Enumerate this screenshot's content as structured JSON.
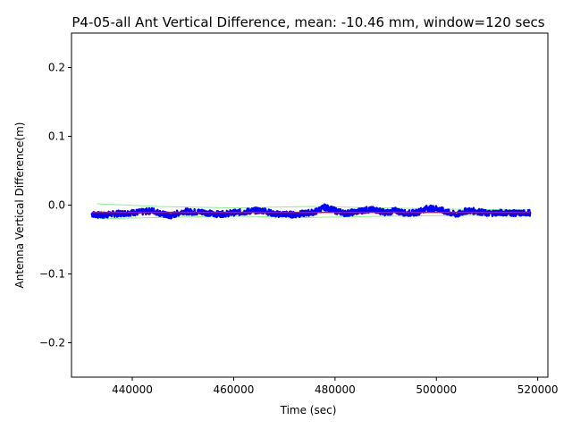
{
  "chart_data": {
    "type": "line",
    "title": "P4-05-all Ant Vertical Difference, mean: -10.46 mm, window=120 secs",
    "xlabel": "Time (sec)",
    "ylabel": "Antenna Vertical Difference(m)",
    "xlim": [
      428000,
      522000
    ],
    "ylim": [
      -0.25,
      0.25
    ],
    "x_ticks": [
      440000,
      460000,
      480000,
      500000,
      520000
    ],
    "x_tick_labels": [
      "440000",
      "460000",
      "480000",
      "500000",
      "520000"
    ],
    "y_ticks": [
      0.2,
      0.1,
      0.0,
      -0.1,
      -0.2
    ],
    "y_tick_labels": [
      "0.2",
      "0.1",
      "0.0",
      "−0.1",
      "−0.2"
    ],
    "grid": false,
    "series": [
      {
        "color": "#0000ff",
        "style": "thick noisy line",
        "x": [
          432000,
          434000,
          436000,
          438000,
          440000,
          442000,
          444000,
          446000,
          447500,
          450000,
          452000,
          454000,
          456000,
          458000,
          460000,
          462000,
          464000,
          466000,
          468000,
          470000,
          472000,
          474000,
          476000,
          478000,
          480000,
          482000,
          484000,
          486000,
          488000,
          490000,
          492000,
          494000,
          496000,
          498000,
          500000,
          502000,
          504000,
          506000,
          508000,
          510000,
          512000,
          514000,
          516000,
          518500
        ],
        "y": [
          -0.013,
          -0.015,
          -0.013,
          -0.012,
          -0.011,
          -0.01,
          -0.008,
          -0.013,
          -0.016,
          -0.009,
          -0.01,
          -0.01,
          -0.013,
          -0.013,
          -0.011,
          -0.01,
          -0.008,
          -0.008,
          -0.013,
          -0.013,
          -0.014,
          -0.012,
          -0.01,
          -0.003,
          -0.008,
          -0.012,
          -0.01,
          -0.007,
          -0.007,
          -0.011,
          -0.008,
          -0.012,
          -0.011,
          -0.005,
          -0.005,
          -0.01,
          -0.014,
          -0.008,
          -0.009,
          -0.012,
          -0.011,
          -0.011,
          -0.012,
          -0.011
        ]
      },
      {
        "color": "#ff0000",
        "style": "thin mean line",
        "x": [
          432000,
          518500
        ],
        "y": [
          -0.0105,
          -0.0105
        ]
      },
      {
        "color": "#90ee90",
        "style": "thin envelope line",
        "x": [
          433000,
          445000,
          460000,
          475000,
          490000,
          505000,
          518000
        ],
        "y": [
          0.002,
          -0.002,
          -0.004,
          -0.002,
          -0.004,
          -0.006,
          -0.007
        ]
      },
      {
        "color": "#90ee90",
        "style": "thin envelope line",
        "x": [
          433000,
          445000,
          460000,
          475000,
          490000,
          505000,
          518000
        ],
        "y": [
          -0.02,
          -0.018,
          -0.016,
          -0.018,
          -0.016,
          -0.015,
          -0.015
        ]
      }
    ]
  }
}
